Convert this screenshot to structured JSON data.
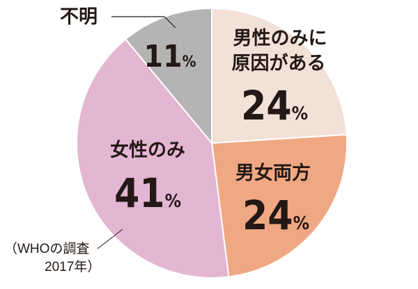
{
  "chart_data": {
    "type": "pie",
    "slices": [
      {
        "label_lines": [
          "男性のみに",
          "原因がある"
        ],
        "value": 24,
        "value_text": "24",
        "unit": "%",
        "color": "#f2e1d7"
      },
      {
        "label_lines": [
          "男女両方"
        ],
        "value": 24,
        "value_text": "24",
        "unit": "%",
        "color": "#f0a884"
      },
      {
        "label_lines": [
          "女性のみ"
        ],
        "value": 41,
        "value_text": "41",
        "unit": "%",
        "color": "#e3b6d3"
      },
      {
        "label_lines": [
          "不明"
        ],
        "value": 11,
        "value_text": "11",
        "unit": "%",
        "color": "#b5b4b5"
      }
    ],
    "source_lines": [
      "（WHOの調査",
      "2017年）"
    ]
  }
}
